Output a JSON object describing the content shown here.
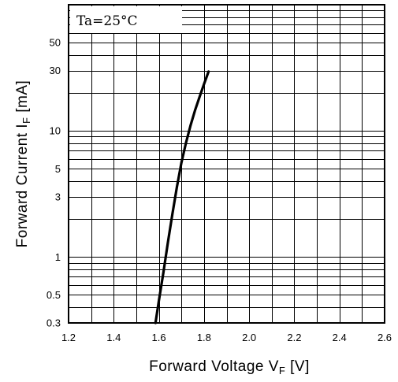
{
  "chart_data": {
    "type": "line",
    "title": "",
    "annotation": "Ta=25°C",
    "xlabel": {
      "main": "Forward   Voltage V",
      "sub": "F",
      "unit": " [V]"
    },
    "ylabel": {
      "main": "Forward   Current I",
      "sub": "F",
      "unit": " [mA]"
    },
    "xlim": [
      1.2,
      2.6
    ],
    "ylim": [
      0.3,
      100
    ],
    "yscale": "log",
    "grid": true,
    "x_ticks": [
      "1.2",
      "1.4",
      "1.6",
      "1.8",
      "2.0",
      "2.2",
      "2.4",
      "2.6"
    ],
    "y_ticks": [
      {
        "value": 0.3,
        "label": "0.3"
      },
      {
        "value": 0.5,
        "label": "0.5"
      },
      {
        "value": 1,
        "label": "1"
      },
      {
        "value": 3,
        "label": "3"
      },
      {
        "value": 5,
        "label": "5"
      },
      {
        "value": 10,
        "label": "10"
      },
      {
        "value": 30,
        "label": "30"
      },
      {
        "value": 50,
        "label": "50"
      }
    ],
    "series": [
      {
        "color": "#000000",
        "x": [
          1.585,
          1.6,
          1.62,
          1.64,
          1.66,
          1.68,
          1.7,
          1.72,
          1.74,
          1.76,
          1.78,
          1.8,
          1.82
        ],
        "y": [
          0.3,
          0.45,
          0.75,
          1.3,
          2.2,
          3.6,
          5.6,
          8.0,
          11.0,
          14.5,
          18.5,
          23.5,
          29.5
        ]
      }
    ]
  }
}
